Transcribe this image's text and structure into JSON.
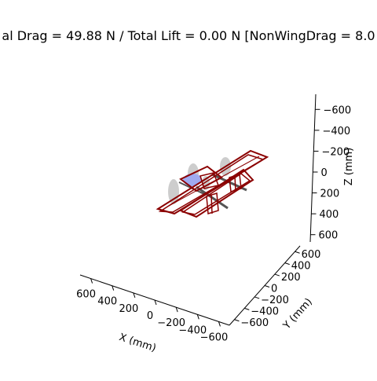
{
  "chart_data": {
    "type": "3d-wireframe",
    "title": "al Drag = 49.88 N / Total Lift = 0.00 N [NonWingDrag = 8.0",
    "axes": {
      "x": {
        "label": "X (mm)",
        "ticks": [
          "600",
          "400",
          "200",
          "0",
          "−200",
          "−400",
          "−600"
        ]
      },
      "y": {
        "label": "Y (mm)",
        "ticks": [
          "−600",
          "−400",
          "−200",
          "0",
          "200",
          "400",
          "600"
        ]
      },
      "z": {
        "label": "Z (mm)",
        "ticks": [
          "−600",
          "−400",
          "−200",
          "0",
          "200",
          "400",
          "600"
        ]
      }
    },
    "colors": {
      "wing_frame": "#8b0000",
      "nacelle": "#c8c8c8",
      "fuselage": "#a0aaf0",
      "boom": "#555555"
    }
  }
}
